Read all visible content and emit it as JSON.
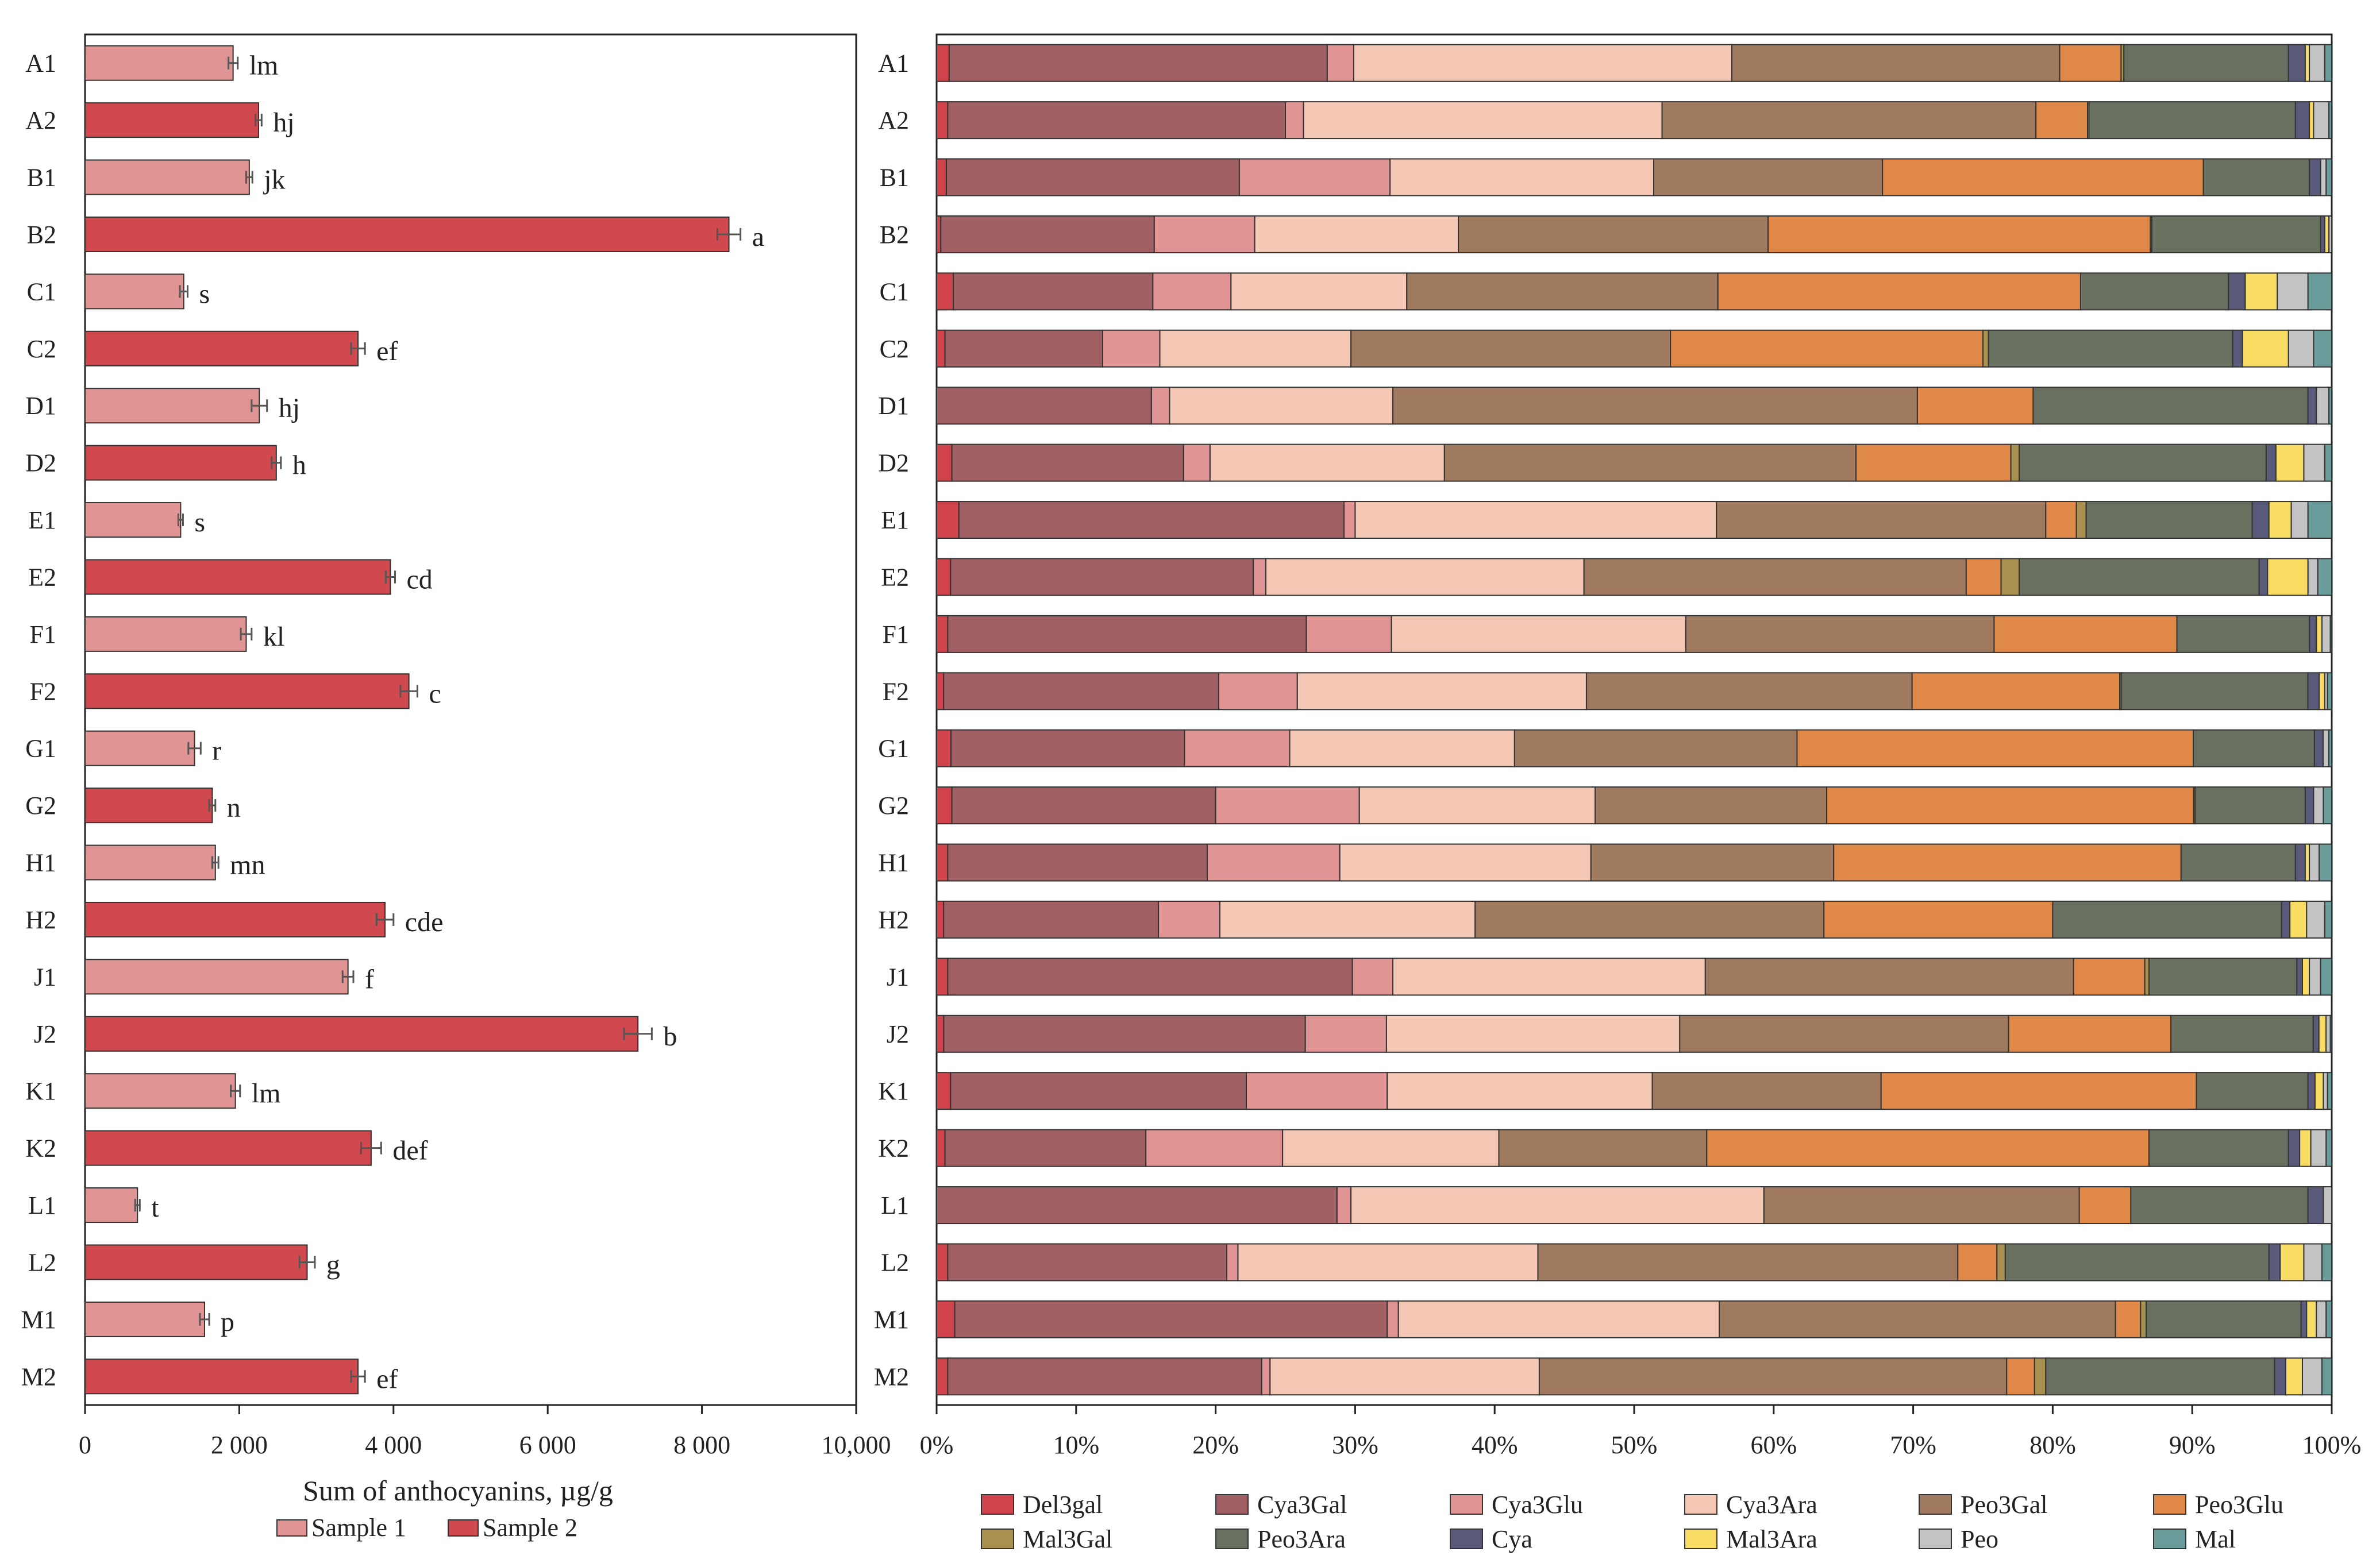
{
  "chart_data": [
    {
      "type": "bar",
      "orientation": "horizontal",
      "categories": [
        "A1",
        "A2",
        "B1",
        "B2",
        "C1",
        "C2",
        "D1",
        "D2",
        "E1",
        "E2",
        "F1",
        "F2",
        "G1",
        "G2",
        "H1",
        "H2",
        "J1",
        "J2",
        "K1",
        "K2",
        "L1",
        "L2",
        "M1",
        "M2"
      ],
      "values": [
        1920,
        2250,
        2130,
        8350,
        1280,
        3540,
        2260,
        2480,
        1240,
        3960,
        2090,
        4200,
        1420,
        1650,
        1690,
        3890,
        3410,
        7170,
        1950,
        3710,
        680,
        2880,
        1550,
        3540
      ],
      "errors": [
        60,
        40,
        40,
        150,
        50,
        90,
        100,
        60,
        30,
        60,
        70,
        110,
        80,
        40,
        40,
        110,
        70,
        180,
        60,
        130,
        30,
        100,
        60,
        90
      ],
      "sample": [
        1,
        2,
        1,
        2,
        1,
        2,
        1,
        2,
        1,
        2,
        1,
        2,
        1,
        2,
        1,
        2,
        1,
        2,
        1,
        2,
        1,
        2,
        1,
        2
      ],
      "letters": [
        "lm",
        "hj",
        "jk",
        "a",
        "s",
        "ef",
        "hj",
        "h",
        "s",
        "cd",
        "kl",
        "c",
        "r",
        "n",
        "mn",
        "cde",
        "f",
        "b",
        "lm",
        "def",
        "t",
        "g",
        "p",
        "ef"
      ],
      "xlabel": "Sum of anthocyanins, µg/g",
      "xlim": [
        0,
        10000
      ],
      "ticks": [
        0,
        2000,
        4000,
        6000,
        8000,
        10000
      ],
      "tick_labels": [
        "0",
        "2 000",
        "4 000",
        "6 000",
        "8 000",
        "10,000"
      ],
      "legend": [
        {
          "name": "Sample 1",
          "color": "#e09494"
        },
        {
          "name": "Sample 2",
          "color": "#d0494e"
        }
      ],
      "legend_position": "bottom"
    },
    {
      "type": "bar",
      "stacked": true,
      "percent": true,
      "orientation": "horizontal",
      "categories": [
        "A1",
        "A2",
        "B1",
        "B2",
        "C1",
        "C2",
        "D1",
        "D2",
        "E1",
        "E2",
        "F1",
        "F2",
        "G1",
        "G2",
        "H1",
        "H2",
        "J1",
        "J2",
        "K1",
        "K2",
        "L1",
        "L2",
        "M1",
        "M2"
      ],
      "xlim": [
        0,
        100
      ],
      "ticks": [
        0,
        10,
        20,
        30,
        40,
        50,
        60,
        70,
        80,
        90,
        100
      ],
      "tick_labels": [
        "0%",
        "10%",
        "20%",
        "30%",
        "40%",
        "50%",
        "60%",
        "70%",
        "80%",
        "90%",
        "100%"
      ],
      "series": [
        {
          "name": "Del3gal",
          "color": "#d0434a",
          "values": [
            0.9,
            0.8,
            0.7,
            0.3,
            1.2,
            0.6,
            0.0,
            1.1,
            1.6,
            1.0,
            0.8,
            0.5,
            1.0,
            1.1,
            0.8,
            0.5,
            0.8,
            0.5,
            1.0,
            0.6,
            0.0,
            0.8,
            1.3,
            0.8
          ]
        },
        {
          "name": "Cya3Gal",
          "color": "#a06064",
          "values": [
            27.1,
            24.2,
            21.0,
            15.3,
            14.3,
            11.3,
            15.4,
            16.6,
            27.6,
            21.7,
            25.7,
            19.6,
            16.2,
            18.9,
            18.6,
            15.4,
            29.0,
            25.4,
            21.2,
            14.4,
            28.7,
            20.0,
            31.0,
            22.5
          ]
        },
        {
          "name": "Cya3Glu",
          "color": "#e09494",
          "values": [
            1.9,
            1.3,
            10.8,
            7.2,
            5.6,
            4.1,
            1.3,
            1.9,
            0.8,
            0.9,
            6.1,
            5.6,
            7.3,
            10.3,
            9.5,
            4.4,
            2.9,
            5.7,
            10.1,
            9.8,
            1.0,
            0.8,
            0.8,
            0.6
          ]
        },
        {
          "name": "Cya3Ara",
          "color": "#f5c8b6",
          "values": [
            27.1,
            25.7,
            18.9,
            14.6,
            12.6,
            13.7,
            16.0,
            16.8,
            25.9,
            22.8,
            21.1,
            20.6,
            15.6,
            16.9,
            18.0,
            18.3,
            22.4,
            20.6,
            19.0,
            15.5,
            29.6,
            21.5,
            23.0,
            19.3
          ]
        },
        {
          "name": "Peo3Gal",
          "color": "#a07a5e",
          "values": [
            23.5,
            26.8,
            16.4,
            22.2,
            22.3,
            22.9,
            37.6,
            29.5,
            23.6,
            27.4,
            22.1,
            23.2,
            19.6,
            16.6,
            17.4,
            25.0,
            26.4,
            23.1,
            16.4,
            14.9,
            22.6,
            30.1,
            28.4,
            33.5
          ]
        },
        {
          "name": "Peo3Glu",
          "color": "#e08848",
          "values": [
            4.4,
            3.7,
            23.0,
            27.4,
            26.0,
            22.4,
            8.3,
            11.1,
            2.2,
            2.5,
            13.1,
            14.8,
            27.5,
            26.3,
            24.9,
            16.4,
            5.1,
            11.4,
            22.6,
            31.7,
            3.7,
            2.8,
            1.8,
            2.0
          ]
        },
        {
          "name": "Mal3Gal",
          "color": "#a89050",
          "values": [
            0.2,
            0.1,
            0.0,
            0.1,
            0.0,
            0.4,
            0.0,
            0.6,
            0.7,
            1.3,
            0.0,
            0.1,
            0.0,
            0.1,
            0.0,
            0.0,
            0.3,
            0.0,
            0.0,
            0.0,
            0.0,
            0.6,
            0.4,
            0.8
          ]
        },
        {
          "name": "Peo3Ara",
          "color": "#6a7060",
          "values": [
            11.8,
            14.8,
            7.6,
            12.1,
            10.6,
            17.5,
            19.7,
            17.7,
            11.9,
            17.2,
            9.5,
            13.3,
            8.4,
            7.9,
            8.2,
            16.4,
            10.6,
            10.0,
            8.0,
            10.0,
            12.7,
            18.9,
            11.1,
            16.4
          ]
        },
        {
          "name": "Cya",
          "color": "#5a5a7a",
          "values": [
            1.2,
            1.0,
            0.8,
            0.3,
            1.2,
            0.7,
            0.6,
            0.7,
            1.2,
            0.6,
            0.5,
            0.8,
            0.6,
            0.6,
            0.7,
            0.6,
            0.4,
            0.4,
            0.5,
            0.8,
            1.1,
            0.8,
            0.4,
            0.8
          ]
        },
        {
          "name": "Mal3Ara",
          "color": "#f8dc64",
          "values": [
            0.3,
            0.3,
            0.0,
            0.3,
            2.3,
            3.3,
            0.0,
            2.0,
            1.6,
            2.9,
            0.4,
            0.4,
            0.0,
            0.0,
            0.3,
            1.2,
            0.5,
            0.5,
            0.6,
            0.8,
            0.0,
            1.7,
            0.7,
            1.2
          ]
        },
        {
          "name": "Peo",
          "color": "#c4c4c4",
          "values": [
            1.1,
            1.1,
            0.4,
            0.2,
            2.2,
            1.8,
            0.9,
            1.5,
            1.2,
            0.7,
            0.6,
            0.2,
            0.4,
            0.7,
            0.7,
            1.3,
            0.8,
            0.3,
            0.3,
            1.1,
            0.6,
            1.3,
            0.7,
            1.4
          ]
        },
        {
          "name": "Mal",
          "color": "#6a9c9c",
          "values": [
            0.5,
            0.2,
            0.4,
            0.0,
            1.7,
            1.3,
            0.2,
            0.5,
            1.7,
            1.0,
            0.1,
            0.3,
            0.2,
            0.6,
            0.9,
            0.5,
            0.8,
            0.1,
            0.3,
            0.4,
            0.0,
            0.7,
            0.4,
            0.7
          ]
        }
      ],
      "legend_position": "bottom"
    }
  ]
}
